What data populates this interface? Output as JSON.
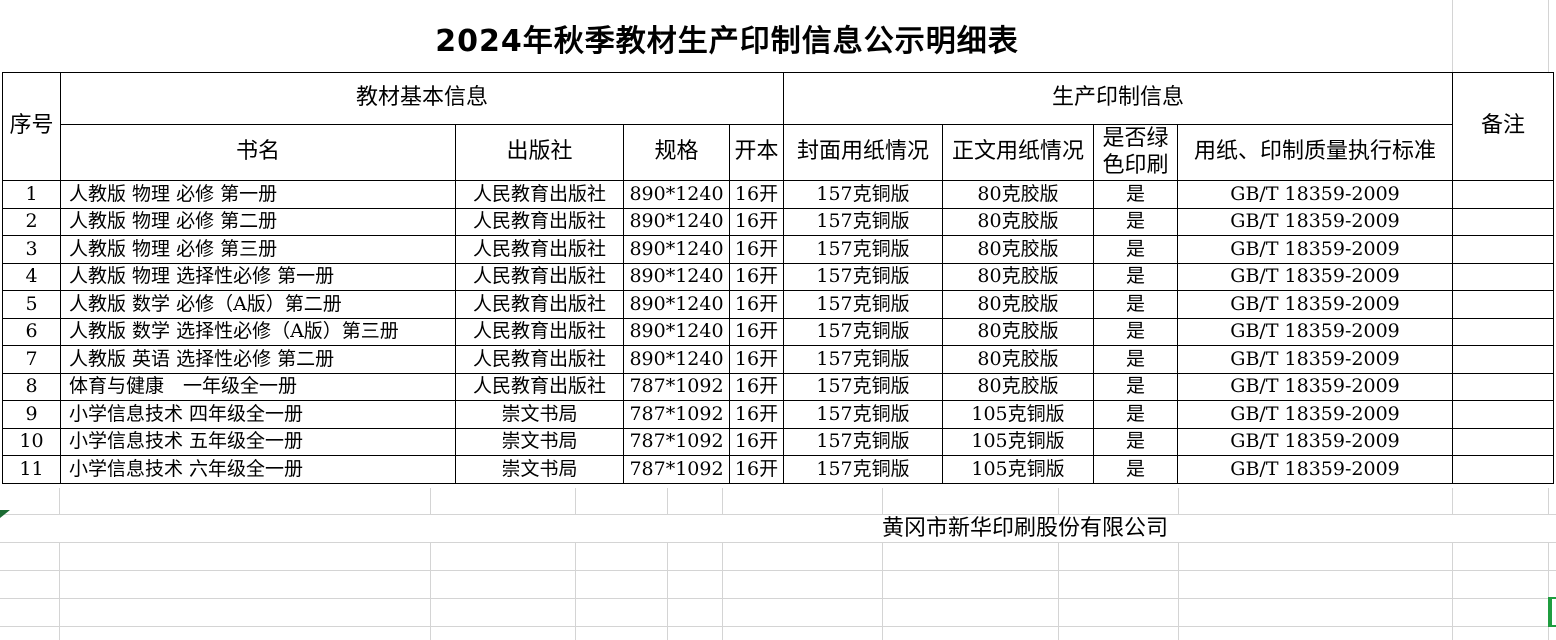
{
  "title": "2024年秋季教材生产印制信息公示明细表",
  "table": {
    "header": {
      "serial": "序号",
      "basic_info": "教材基本信息",
      "production_info": "生产印制信息",
      "remark": "备注",
      "sub": [
        "书名",
        "出版社",
        "规格",
        "开本",
        "封面用纸情况",
        "正文用纸情况",
        "是否绿色印刷",
        "用纸、印制质量执行标准"
      ]
    },
    "rows": [
      {
        "no": "1",
        "book": "人教版 物理 必修 第一册",
        "publisher": "人民教育出版社",
        "spec": "890*1240",
        "format": "16开",
        "cover_paper": "157克铜版",
        "text_paper": "80克胶版",
        "green_print": "是",
        "standard": "GB/T 18359-2009",
        "remark": ""
      },
      {
        "no": "2",
        "book": "人教版 物理 必修 第二册",
        "publisher": "人民教育出版社",
        "spec": "890*1240",
        "format": "16开",
        "cover_paper": "157克铜版",
        "text_paper": "80克胶版",
        "green_print": "是",
        "standard": "GB/T 18359-2009",
        "remark": ""
      },
      {
        "no": "3",
        "book": "人教版 物理 必修 第三册",
        "publisher": "人民教育出版社",
        "spec": "890*1240",
        "format": "16开",
        "cover_paper": "157克铜版",
        "text_paper": "80克胶版",
        "green_print": "是",
        "standard": "GB/T 18359-2009",
        "remark": ""
      },
      {
        "no": "4",
        "book": "人教版 物理 选择性必修 第一册",
        "publisher": "人民教育出版社",
        "spec": "890*1240",
        "format": "16开",
        "cover_paper": "157克铜版",
        "text_paper": "80克胶版",
        "green_print": "是",
        "standard": "GB/T 18359-2009",
        "remark": ""
      },
      {
        "no": "5",
        "book": "人教版 数学 必修（A版）第二册",
        "publisher": "人民教育出版社",
        "spec": "890*1240",
        "format": "16开",
        "cover_paper": "157克铜版",
        "text_paper": "80克胶版",
        "green_print": "是",
        "standard": "GB/T 18359-2009",
        "remark": ""
      },
      {
        "no": "6",
        "book": "人教版 数学 选择性必修（A版）第三册",
        "publisher": "人民教育出版社",
        "spec": "890*1240",
        "format": "16开",
        "cover_paper": "157克铜版",
        "text_paper": "80克胶版",
        "green_print": "是",
        "standard": "GB/T 18359-2009",
        "remark": ""
      },
      {
        "no": "7",
        "book": "人教版 英语 选择性必修 第二册",
        "publisher": "人民教育出版社",
        "spec": "890*1240",
        "format": "16开",
        "cover_paper": "157克铜版",
        "text_paper": "80克胶版",
        "green_print": "是",
        "standard": "GB/T 18359-2009",
        "remark": ""
      },
      {
        "no": "8",
        "book": "体育与健康　一年级全一册",
        "publisher": "人民教育出版社",
        "spec": "787*1092",
        "format": "16开",
        "cover_paper": "157克铜版",
        "text_paper": "80克胶版",
        "green_print": "是",
        "standard": "GB/T 18359-2009",
        "remark": ""
      },
      {
        "no": "9",
        "book": "小学信息技术 四年级全一册",
        "publisher": "崇文书局",
        "spec": "787*1092",
        "format": "16开",
        "cover_paper": "157克铜版",
        "text_paper": "105克铜版",
        "green_print": "是",
        "standard": "GB/T 18359-2009",
        "remark": ""
      },
      {
        "no": "10",
        "book": "小学信息技术 五年级全一册",
        "publisher": "崇文书局",
        "spec": "787*1092",
        "format": "16开",
        "cover_paper": "157克铜版",
        "text_paper": "105克铜版",
        "green_print": "是",
        "standard": "GB/T 18359-2009",
        "remark": ""
      },
      {
        "no": "11",
        "book": "小学信息技术 六年级全一册",
        "publisher": "崇文书局",
        "spec": "787*1092",
        "format": "16开",
        "cover_paper": "157克铜版",
        "text_paper": "105克铜版",
        "green_print": "是",
        "standard": "GB/T 18359-2009",
        "remark": ""
      }
    ]
  },
  "footer": {
    "company": "黄冈市新华印刷股份有限公司"
  },
  "colors": {
    "border": "#000000",
    "gridline": "#d4d4d4",
    "selection_green": "#1f9d3f",
    "marker_green": "#1b6b33"
  }
}
